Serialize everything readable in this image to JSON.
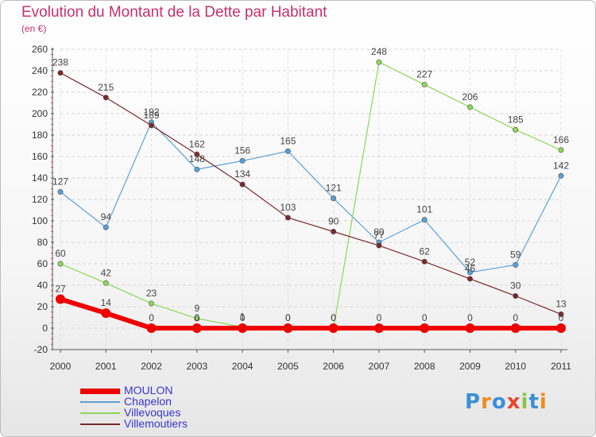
{
  "title": "Evolution du Montant de la Dette par Habitant",
  "subtitle": "(en €)",
  "brand": {
    "text": "Proxiti",
    "letter_colors": [
      "#3b8fd6",
      "#f08a1e",
      "#3b8fd6",
      "#e8452e",
      "#8bc34a",
      "#3b8fd6",
      "#f08a1e"
    ]
  },
  "chart_data": {
    "type": "line",
    "x": [
      2000,
      2001,
      2002,
      2003,
      2004,
      2005,
      2006,
      2007,
      2008,
      2009,
      2010,
      2011
    ],
    "ylim": [
      -20,
      260
    ],
    "yticks": [
      -20,
      0,
      20,
      40,
      60,
      80,
      100,
      120,
      140,
      160,
      180,
      200,
      220,
      240,
      260
    ],
    "grid": true,
    "legend_position": "bottom-left",
    "series": [
      {
        "name": "MOULON",
        "color": "#ee0000",
        "width": 6,
        "values": [
          27,
          14,
          0,
          0,
          0,
          0,
          0,
          0,
          0,
          0,
          0,
          0
        ],
        "labels": [
          "27",
          "14",
          "0",
          "0",
          "0",
          "0",
          "0",
          "0",
          "0",
          "0",
          "0",
          "0"
        ]
      },
      {
        "name": "Chapelon",
        "color": "#5ba0d6",
        "width": 1.2,
        "values": [
          127,
          94,
          192,
          148,
          156,
          165,
          121,
          80,
          101,
          52,
          59,
          142
        ],
        "labels": [
          "127",
          "94",
          "192",
          "148",
          "156",
          "165",
          "121",
          "80",
          "101",
          "52",
          "59",
          "142"
        ]
      },
      {
        "name": "Villevoques",
        "color": "#8ed65a",
        "width": 1.2,
        "values": [
          60,
          42,
          23,
          9,
          1,
          0,
          0,
          248,
          227,
          206,
          185,
          166
        ],
        "labels": [
          "60",
          "42",
          "23",
          "9",
          "1",
          "0",
          "0",
          "248",
          "227",
          "206",
          "185",
          "166"
        ]
      },
      {
        "name": "Villemoutiers",
        "color": "#7a2a2a",
        "width": 1.2,
        "values": [
          238,
          215,
          189,
          162,
          134,
          103,
          90,
          77,
          62,
          46,
          30,
          13
        ],
        "labels": [
          "238",
          "215",
          "189",
          "162",
          "134",
          "103",
          "90",
          "77",
          "62",
          "46",
          "30",
          "13"
        ]
      }
    ]
  }
}
